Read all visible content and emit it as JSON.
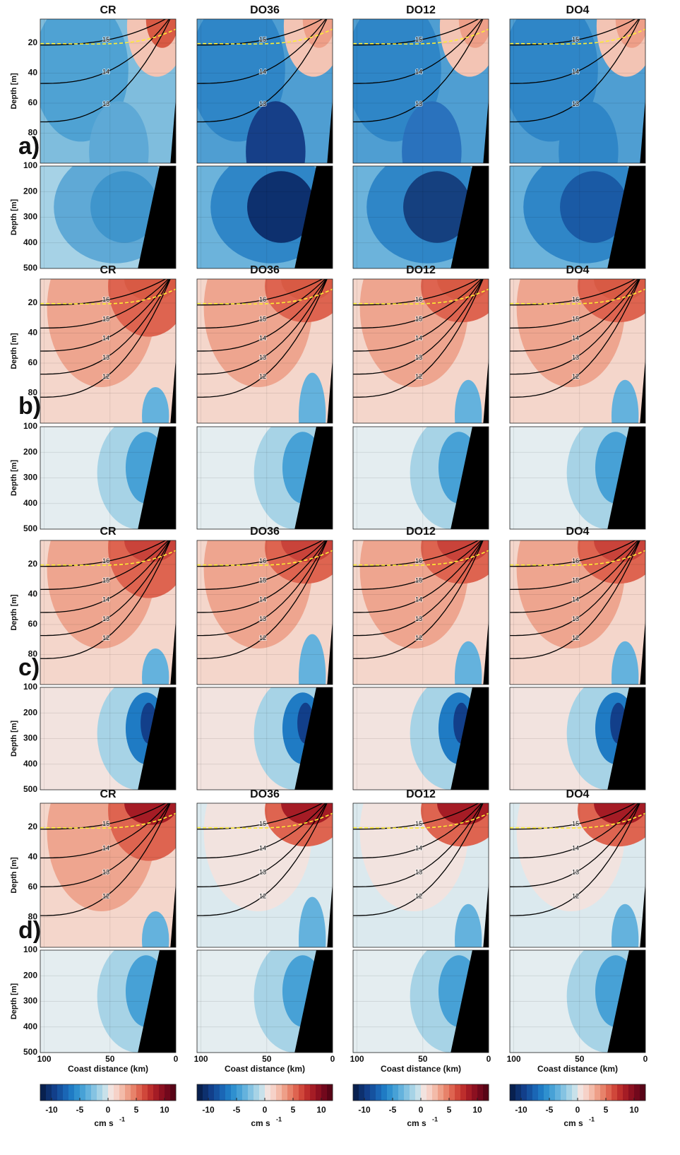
{
  "figure": {
    "columns": [
      "CR",
      "DO36",
      "DO12",
      "DO4"
    ],
    "panels": [
      {
        "label": "a)",
        "isotherms": [
          15,
          14,
          13
        ]
      },
      {
        "label": "b)",
        "isotherms": [
          16,
          15,
          14,
          13,
          12
        ]
      },
      {
        "label": "c)",
        "isotherms": [
          16,
          15,
          14,
          13,
          12
        ]
      },
      {
        "label": "d)",
        "isotherms": [
          15,
          14,
          13,
          12
        ]
      }
    ],
    "upper": {
      "ylabel": "Depth [m]",
      "ylim": [
        4,
        100
      ],
      "yticks": [
        20,
        40,
        60,
        80
      ]
    },
    "lower": {
      "ylabel": "Depth [m]",
      "ylim": [
        100,
        500
      ],
      "yticks": [
        100,
        200,
        300,
        400,
        500
      ]
    },
    "x": {
      "label": "Coast distance (km)",
      "xlim": [
        103,
        0
      ],
      "xticks": [
        100,
        50,
        0
      ]
    },
    "colorbar": {
      "label": "cm s",
      "label_exponent": "-1",
      "lim": [
        -12,
        12
      ],
      "ticks": [
        -10,
        -5,
        0,
        5,
        10
      ],
      "colors": [
        "#08204f",
        "#0d306e",
        "#123f8a",
        "#15529f",
        "#1a66b5",
        "#1f7bc4",
        "#2f90cf",
        "#47a1d6",
        "#64b2dd",
        "#85c3e2",
        "#a7d3e6",
        "#c8e1ea",
        "#f2e3df",
        "#f6d2c8",
        "#f3bba9",
        "#ee9f88",
        "#e7826a",
        "#de6450",
        "#d0473a",
        "#bd2e2c",
        "#a51c25",
        "#8c1020",
        "#72081c",
        "#580416"
      ]
    }
  }
}
